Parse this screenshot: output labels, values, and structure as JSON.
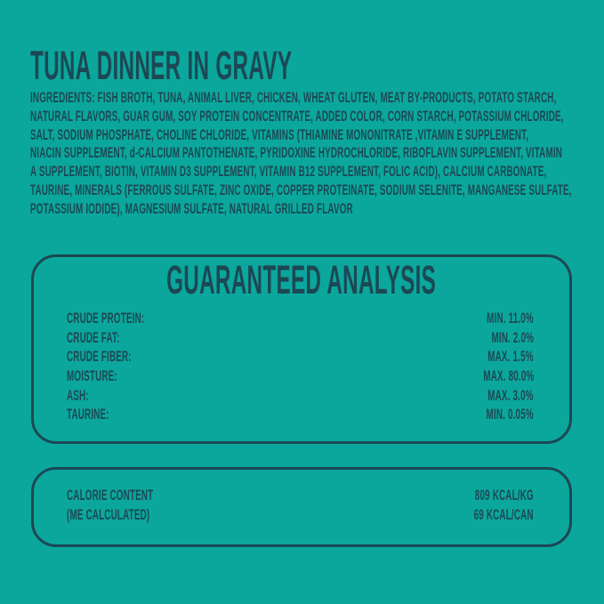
{
  "colors": {
    "background": "#0BA79C",
    "ink": "#1C4854"
  },
  "title": "TUNA DINNER IN GRAVY",
  "ingredients": {
    "lines": [
      "INGREDIENTS: FISH BROTH, TUNA, ANIMAL LIVER, CHICKEN, WHEAT GLUTEN, MEAT BY-PRODUCTS, POTATO STARCH,",
      "NATURAL FLAVORS, GUAR GUM, SOY PROTEIN CONCENTRATE, ADDED COLOR, CORN STARCH, POTASSIUM CHLORIDE,",
      "SALT, SODIUM PHOSPHATE, CHOLINE CHLORIDE, VITAMINS (THIAMINE MONONITRATE ,VITAMIN E SUPPLEMENT,",
      "NIACIN SUPPLEMENT, d-CALCIUM PANTOTHENATE, PYRIDOXINE HYDROCHLORIDE, RIBOFLAVIN SUPPLEMENT, VITAMIN",
      "A SUPPLEMENT, BIOTIN, VITAMIN D3 SUPPLEMENT, VITAMIN B12 SUPPLEMENT, FOLIC ACID), CALCIUM CARBONATE,",
      "TAURINE, MINERALS (FERROUS SULFATE, ZINC OXIDE, COPPER PROTEINATE, SODIUM SELENITE, MANGANESE SULFATE,",
      "POTASSIUM IODIDE), MAGNESIUM SULFATE, NATURAL GRILLED FLAVOR"
    ]
  },
  "guaranteed_analysis": {
    "title": "GUARANTEED ANALYSIS",
    "rows": [
      {
        "label": "CRUDE PROTEIN:",
        "value": "MIN. 11.0%"
      },
      {
        "label": "CRUDE FAT:",
        "value": "MIN. 2.0%"
      },
      {
        "label": "CRUDE FIBER:",
        "value": "MAX. 1.5%"
      },
      {
        "label": "MOISTURE:",
        "value": "MAX. 80.0%"
      },
      {
        "label": "ASH:",
        "value": "MAX. 3.0%"
      },
      {
        "label": "TAURINE:",
        "value": "MIN. 0.05%"
      }
    ]
  },
  "calorie_content": {
    "label_line1": "CALORIE CONTENT",
    "label_line2": "(ME CALCULATED)",
    "value_line1": "809 KCAL/KG",
    "value_line2": "69 KCAL/CAN"
  }
}
